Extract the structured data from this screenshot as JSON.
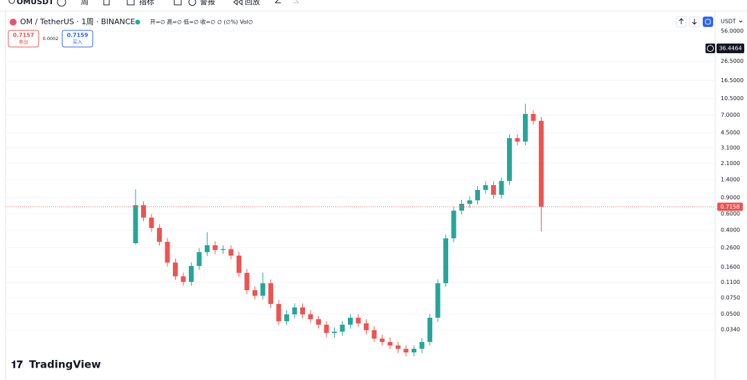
{
  "toolbar": {
    "symbol": "OMUSDT",
    "interval": "周",
    "indicators": "指标",
    "alerts": "警报",
    "replay": "回放"
  },
  "chart_data": {
    "type": "candlestick",
    "title": "OM / TetherUS · 1周 · BINANCE",
    "ohlc_legend": "开=∅ 高=∅ 低=∅ 收=∅ ∅ (∅%) Vol∅",
    "quote": {
      "sell_price": 0.7157,
      "sell_label": "卖出",
      "spread": 0.0002,
      "buy_price": 0.7159,
      "buy_label": "买入"
    },
    "currency": "USDT",
    "brand": "TradingView",
    "log_scale": true,
    "grid": true,
    "up_color": "#26a69a",
    "down_color": "#ef5350",
    "crosshair_price": 36.4464,
    "open": [
      0.29,
      0.745,
      0.547,
      0.423,
      0.3,
      0.1796,
      0.1274,
      0.1111,
      0.1648,
      0.2323,
      0.2757,
      0.2445,
      0.25,
      0.2132,
      0.1389,
      0.0904,
      0.0788,
      0.1074,
      0.0642,
      0.0418,
      0.0496,
      0.0589,
      0.0496,
      0.044,
      0.0384,
      0.0313,
      0.0323,
      0.0384,
      0.0456,
      0.0397,
      0.0335,
      0.0272,
      0.025,
      0.0229,
      0.0211,
      0.0193,
      0.0211,
      0.025,
      0.0456,
      0.1074,
      0.3272,
      0.65,
      0.771,
      0.84,
      1.087,
      1.225,
      0.964,
      1.358,
      3.93,
      3.61,
      7.16,
      6.04
    ],
    "high": [
      1.1,
      0.82,
      0.6,
      0.465,
      0.33,
      0.198,
      0.14,
      0.181,
      0.256,
      0.38,
      0.303,
      0.275,
      0.275,
      0.235,
      0.153,
      0.099,
      0.14,
      0.118,
      0.071,
      0.055,
      0.065,
      0.065,
      0.055,
      0.048,
      0.042,
      0.036,
      0.042,
      0.05,
      0.05,
      0.044,
      0.037,
      0.03,
      0.028,
      0.025,
      0.023,
      0.023,
      0.0275,
      0.05,
      0.118,
      0.36,
      0.715,
      0.85,
      0.925,
      1.2,
      1.35,
      1.35,
      1.49,
      4.32,
      4.32,
      9.26,
      7.88,
      6.64
    ],
    "low": [
      0.28,
      0.5,
      0.385,
      0.273,
      0.163,
      0.116,
      0.101,
      0.101,
      0.15,
      0.211,
      0.222,
      0.222,
      0.194,
      0.126,
      0.082,
      0.072,
      0.072,
      0.058,
      0.038,
      0.038,
      0.045,
      0.045,
      0.04,
      0.035,
      0.028,
      0.028,
      0.029,
      0.035,
      0.036,
      0.03,
      0.025,
      0.023,
      0.021,
      0.019,
      0.0175,
      0.0175,
      0.019,
      0.023,
      0.041,
      0.098,
      0.297,
      0.59,
      0.7,
      0.76,
      0.99,
      0.875,
      0.875,
      1.23,
      3.28,
      3.28,
      5.49,
      0.388
    ],
    "close": [
      0.745,
      0.547,
      0.423,
      0.3,
      0.1796,
      0.1274,
      0.1111,
      0.1648,
      0.2323,
      0.2757,
      0.2445,
      0.25,
      0.2132,
      0.1389,
      0.0904,
      0.0788,
      0.1074,
      0.0642,
      0.0418,
      0.0496,
      0.0589,
      0.0496,
      0.044,
      0.0384,
      0.0313,
      0.0323,
      0.0384,
      0.0456,
      0.0397,
      0.0335,
      0.0272,
      0.025,
      0.0229,
      0.0211,
      0.0193,
      0.0211,
      0.025,
      0.0456,
      0.1074,
      0.3272,
      0.65,
      0.771,
      0.84,
      1.087,
      1.225,
      0.964,
      1.358,
      3.93,
      3.61,
      7.16,
      6.04,
      0.7158
    ],
    "ylim": [
      0.0106,
      61
    ],
    "yticks": [
      {
        "value": 56,
        "label": "56.0000"
      },
      {
        "value": 26.5,
        "label": "26.5000"
      },
      {
        "value": 16.5,
        "label": "16.5000"
      },
      {
        "value": 10.5,
        "label": "10.5000"
      },
      {
        "value": 7,
        "label": "7.0000"
      },
      {
        "value": 4.5,
        "label": "4.5000"
      },
      {
        "value": 3.1,
        "label": "3.1000"
      },
      {
        "value": 2.1,
        "label": "2.1000"
      },
      {
        "value": 1.4,
        "label": "1.4000"
      },
      {
        "value": 0.9,
        "label": "0.9000"
      },
      {
        "value": 0.6,
        "label": "0.6000"
      },
      {
        "value": 0.4,
        "label": "0.4000"
      },
      {
        "value": 0.26,
        "label": "0.2600"
      },
      {
        "value": 0.16,
        "label": "0.1600"
      },
      {
        "value": 0.11,
        "label": "0.1100"
      },
      {
        "value": 0.075,
        "label": "0.0750"
      },
      {
        "value": 0.05,
        "label": "0.0500"
      },
      {
        "value": 0.034,
        "label": "0.0340"
      }
    ]
  }
}
